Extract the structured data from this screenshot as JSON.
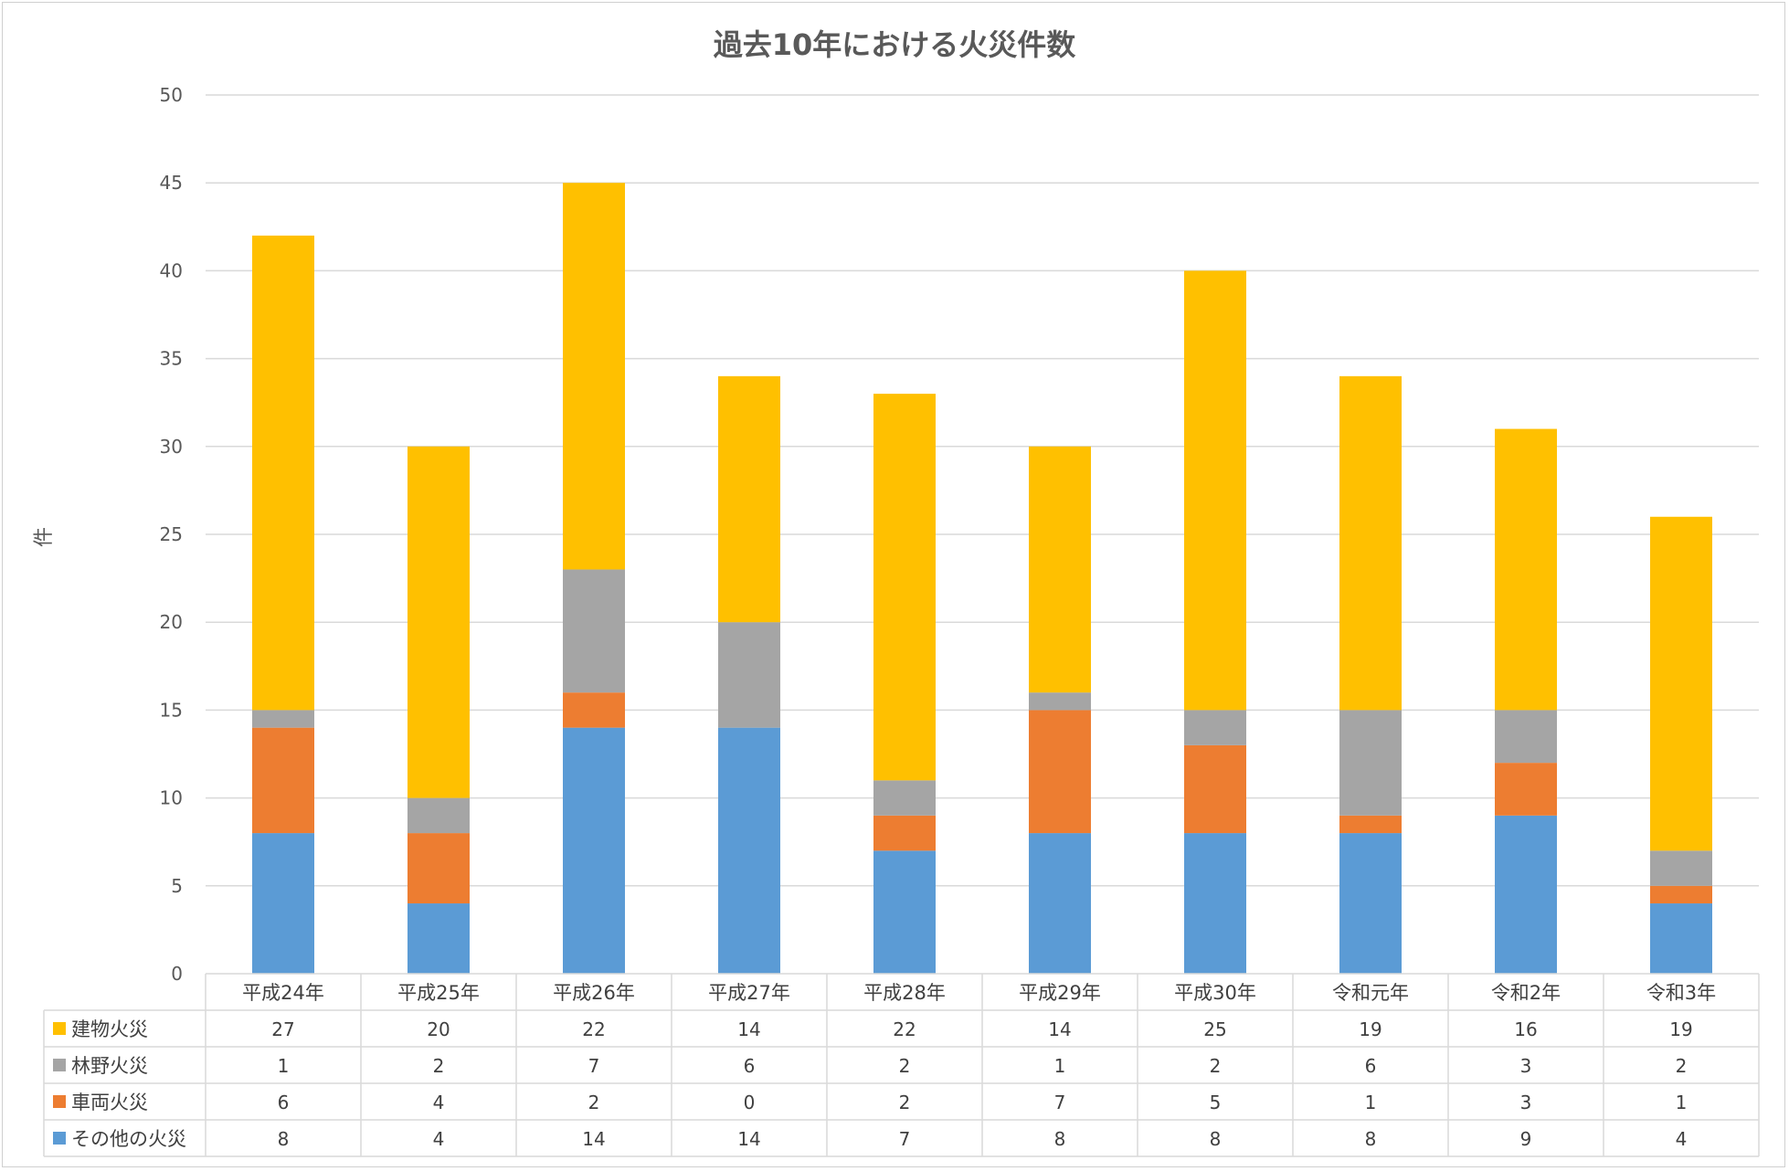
{
  "chart_data": {
    "type": "bar",
    "stacked": true,
    "title": "過去10年における火災件数",
    "ylabel": "件",
    "xlabel": "",
    "ylim": [
      0,
      50
    ],
    "yticks": [
      0,
      5,
      10,
      15,
      20,
      25,
      30,
      35,
      40,
      45,
      50
    ],
    "grid": true,
    "legend": "data-table",
    "categories": [
      "平成24年",
      "平成25年",
      "平成26年",
      "平成27年",
      "平成28年",
      "平成29年",
      "平成30年",
      "令和元年",
      "令和2年",
      "令和3年"
    ],
    "series": [
      {
        "name": "その他の火災",
        "color": "#5B9BD5",
        "values": [
          8,
          4,
          14,
          14,
          7,
          8,
          8,
          8,
          9,
          4
        ]
      },
      {
        "name": "車両火災",
        "color": "#ED7D31",
        "values": [
          6,
          4,
          2,
          0,
          2,
          7,
          5,
          1,
          3,
          1
        ]
      },
      {
        "name": "林野火災",
        "color": "#A5A5A5",
        "values": [
          1,
          2,
          7,
          6,
          2,
          1,
          2,
          6,
          3,
          2
        ]
      },
      {
        "name": "建物火災",
        "color": "#FFC000",
        "values": [
          27,
          20,
          22,
          14,
          22,
          14,
          25,
          19,
          16,
          19
        ]
      }
    ],
    "table_row_order": [
      "建物火災",
      "林野火災",
      "車両火災",
      "その他の火災"
    ]
  }
}
